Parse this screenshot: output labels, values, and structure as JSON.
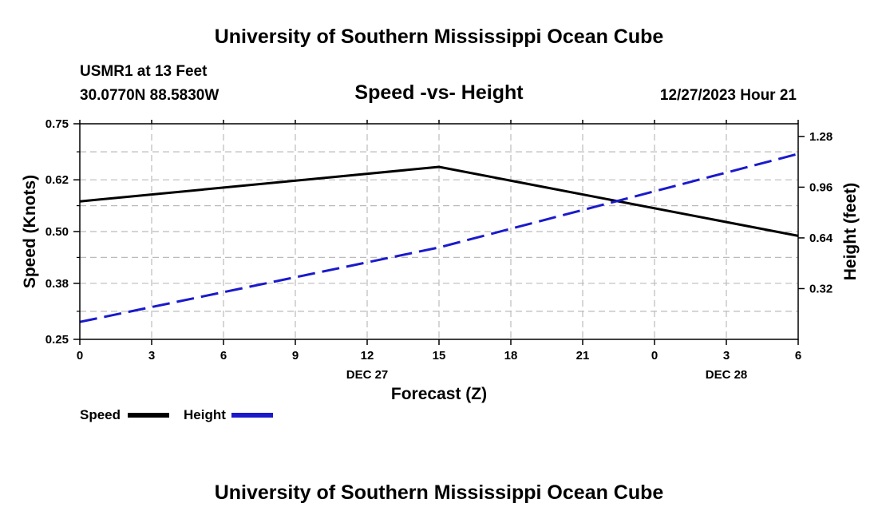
{
  "page": {
    "title_top": "University of Southern Mississippi Ocean Cube",
    "title_bottom": "University of Southern Mississippi Ocean Cube",
    "station": "USMR1 at 13 Feet",
    "coordinates": "30.0770N  88.5830W",
    "timestamp": "12/27/2023 Hour 21"
  },
  "colors": {
    "speed": "#000000",
    "height": "#1a1acc",
    "grid": "#bbbbbb"
  },
  "chart_data": {
    "type": "line",
    "title": "Speed -vs- Height",
    "xlabel": "Forecast (Z)",
    "ylabel": "Speed (Knots)",
    "ylabel_right": "Height (feet)",
    "x": [
      0,
      3,
      6,
      9,
      12,
      15,
      18,
      21,
      24,
      27,
      30
    ],
    "xlim": [
      0,
      30
    ],
    "x_tick_labels": [
      "0",
      "3",
      "6",
      "9",
      "12",
      "15",
      "18",
      "21",
      "0",
      "3",
      "6"
    ],
    "date_labels": [
      {
        "x": 12,
        "label": "DEC 27"
      },
      {
        "x": 27,
        "label": "DEC 28"
      }
    ],
    "ylim": [
      0.25,
      0.75
    ],
    "y_ticks": [
      0.25,
      0.38,
      0.5,
      0.62,
      0.75
    ],
    "y_tick_labels": [
      "0.25",
      "0.38",
      "0.50",
      "0.62",
      "0.75"
    ],
    "y2lim": [
      0.0,
      1.36
    ],
    "y2_ticks": [
      0.32,
      0.64,
      0.96,
      1.28
    ],
    "y2_tick_labels": [
      "0.32",
      "0.64",
      "0.96",
      "1.28"
    ],
    "series": [
      {
        "name": "Speed",
        "axis": "left",
        "style": "solid",
        "x": [
          0,
          15,
          30
        ],
        "values": [
          0.57,
          0.65,
          0.49
        ]
      },
      {
        "name": "Height",
        "axis": "right",
        "style": "dashed",
        "x": [
          0,
          15,
          30
        ],
        "values": [
          0.11,
          0.58,
          1.17
        ]
      }
    ],
    "legend": [
      "Speed",
      "Height"
    ],
    "legend_position": "bottom-left",
    "grid": true
  }
}
